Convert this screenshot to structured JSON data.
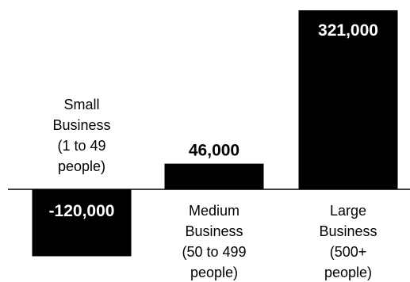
{
  "chart_data": {
    "type": "bar",
    "categories": [
      "Small Business (1 to 49 people)",
      "Medium Business (50 to 499 people)",
      "Large Business (500+ people)"
    ],
    "category_label_lines": [
      [
        "Small",
        "Business",
        "(1 to 49",
        "people)"
      ],
      [
        "Medium",
        "Business",
        "(50 to 499",
        "people)"
      ],
      [
        "Large",
        "Business",
        "(500+",
        "people)"
      ]
    ],
    "values": [
      -120000,
      46000,
      321000
    ],
    "value_labels": [
      "-120,000",
      "46,000",
      "321,000"
    ],
    "ylim": [
      -120000,
      321000
    ],
    "grid": false,
    "axis_line": "zero baseline only",
    "bar_color": "#000000",
    "text_color": "#000000",
    "label_on_bar_color": "#ffffff",
    "background": "#ffffff"
  }
}
